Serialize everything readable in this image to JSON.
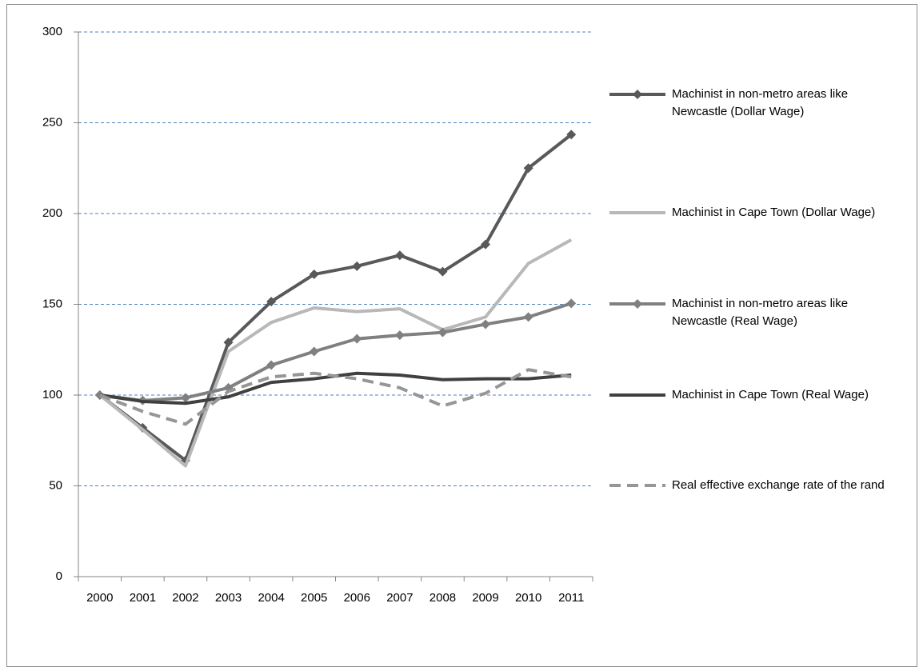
{
  "chart_data": {
    "type": "line",
    "categories": [
      "2000",
      "2001",
      "2002",
      "2003",
      "2004",
      "2005",
      "2006",
      "2007",
      "2008",
      "2009",
      "2010",
      "2011"
    ],
    "series": [
      {
        "name": "Machinist in non-metro areas like Newcastle (Dollar Wage)",
        "color": "#595959",
        "marker": "diamond",
        "dash": false,
        "values": [
          100,
          82,
          64,
          129,
          151.5,
          166.5,
          171,
          177,
          168,
          183,
          225,
          243.5
        ]
      },
      {
        "name": "Machinist in Cape Town (Dollar Wage)",
        "color": "#b8b8b8",
        "marker": "none",
        "dash": false,
        "values": [
          100,
          81,
          61,
          124,
          140,
          148,
          146,
          147.5,
          136,
          143,
          172.5,
          185.5
        ]
      },
      {
        "name": "Machinist in non-metro areas like Newcastle (Real Wage)",
        "color": "#808080",
        "marker": "diamond",
        "dash": false,
        "values": [
          100,
          97,
          98.5,
          104,
          116.5,
          124,
          131,
          133,
          134.5,
          139,
          143,
          150.5
        ]
      },
      {
        "name": "Machinist in Cape Town (Real Wage)",
        "color": "#404040",
        "marker": "none",
        "dash": false,
        "values": [
          100,
          96.5,
          95.5,
          99,
          107,
          109,
          112,
          111,
          108.5,
          109,
          109,
          111
        ]
      },
      {
        "name": "Real effective exchange rate of the rand",
        "color": "#969696",
        "marker": "none",
        "dash": true,
        "values": [
          100,
          91,
          84,
          102,
          110,
          112,
          109,
          104,
          94,
          101,
          114,
          110
        ]
      }
    ],
    "ylim": [
      0,
      300
    ],
    "yticks": [
      0,
      50,
      100,
      150,
      200,
      250,
      300
    ],
    "grid": true,
    "legend": "right"
  }
}
